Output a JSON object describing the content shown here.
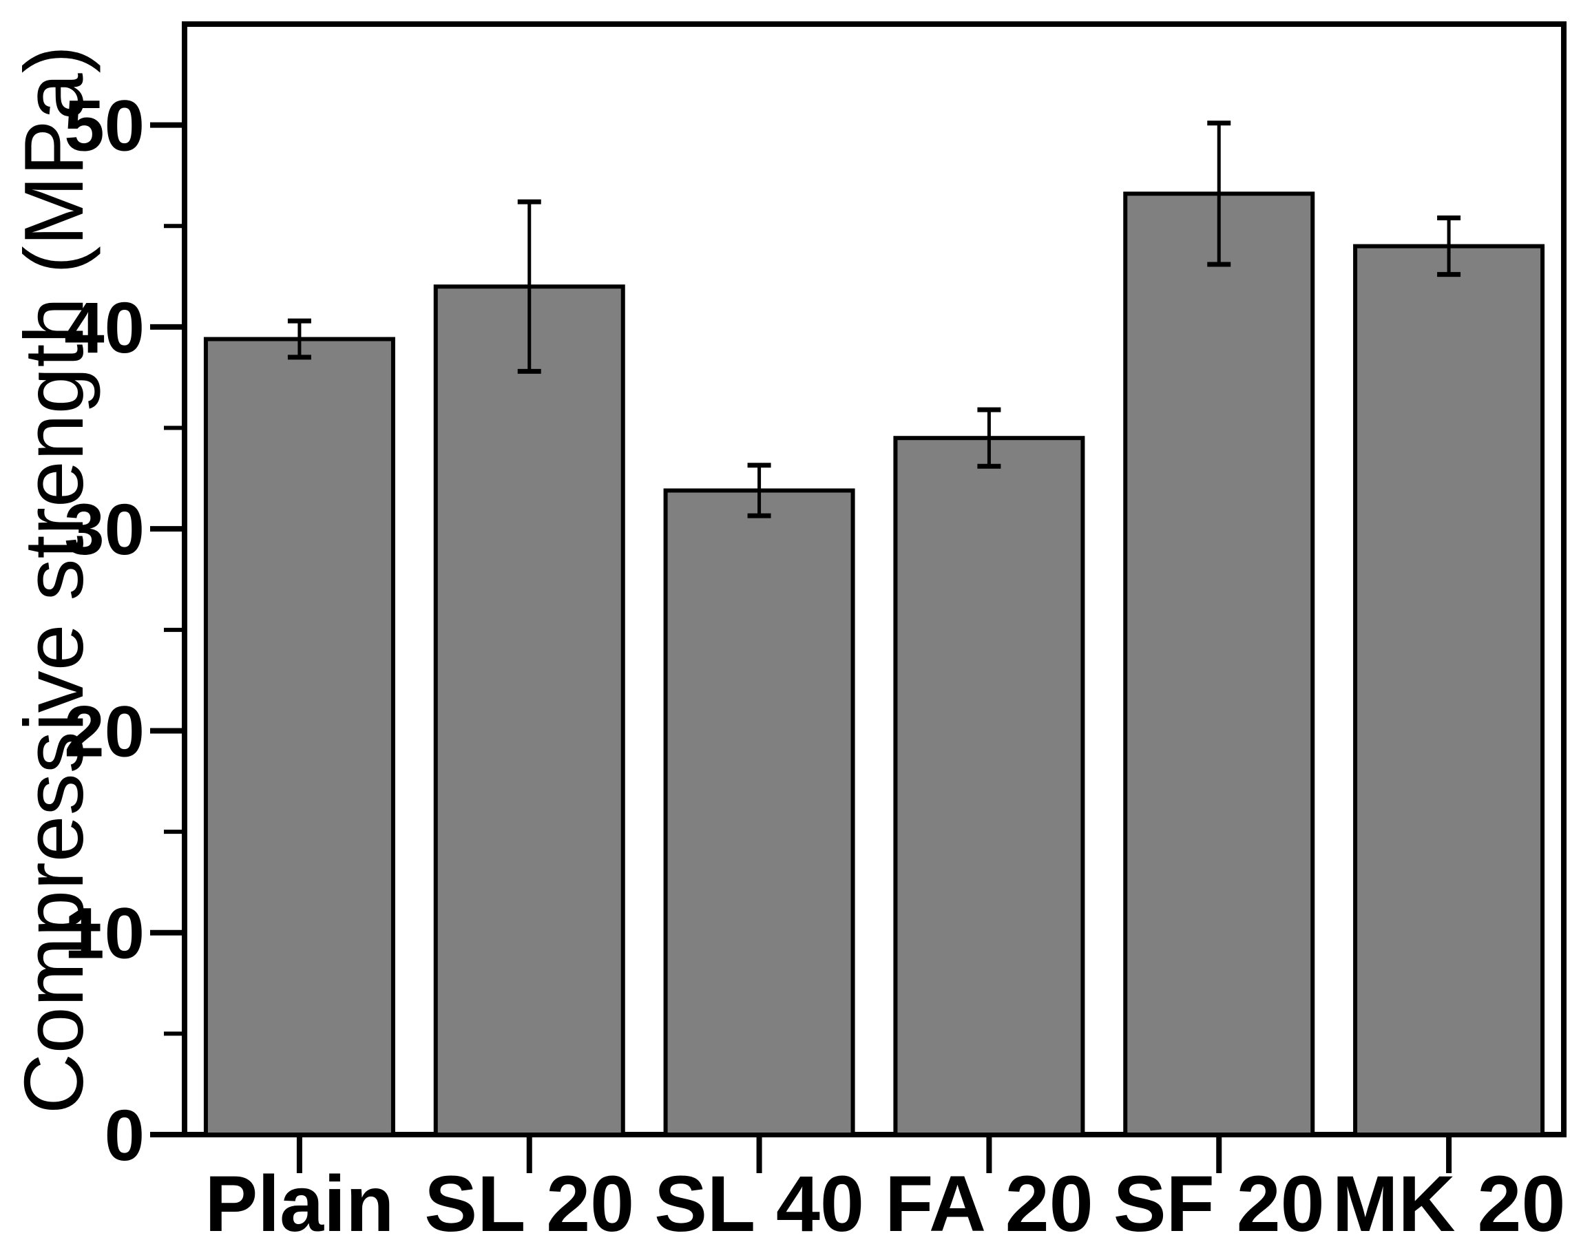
{
  "figure": {
    "background": "#ffffff",
    "text_color": "#000000"
  },
  "chart_data": {
    "type": "bar",
    "title": "",
    "xlabel": "",
    "ylabel": "Compressive strength (MPa)",
    "categories": [
      "Plain",
      "SL 20",
      "SL 40",
      "FA 20",
      "SF 20",
      "MK 20"
    ],
    "values": [
      39.4,
      42.0,
      31.9,
      34.5,
      46.6,
      44.0
    ],
    "errors": [
      0.9,
      4.2,
      1.25,
      1.4,
      3.5,
      1.4
    ],
    "series": [
      {
        "name": "Compressive strength (MPa)",
        "values": [
          39.4,
          42.0,
          31.9,
          34.5,
          46.6,
          44.0
        ],
        "errors": [
          0.9,
          4.2,
          1.25,
          1.4,
          3.5,
          1.4
        ]
      }
    ],
    "ylim": [
      0,
      55
    ],
    "yticks_major": [
      0,
      10,
      20,
      30,
      40,
      50
    ],
    "yticks_minor": [
      5,
      15,
      25,
      35,
      45
    ],
    "grid": false,
    "legend": false,
    "bar_fill": "#808080",
    "bar_stroke": "#000000",
    "axis_color": "#000000",
    "error_bar_style": "caps-both-ends"
  }
}
